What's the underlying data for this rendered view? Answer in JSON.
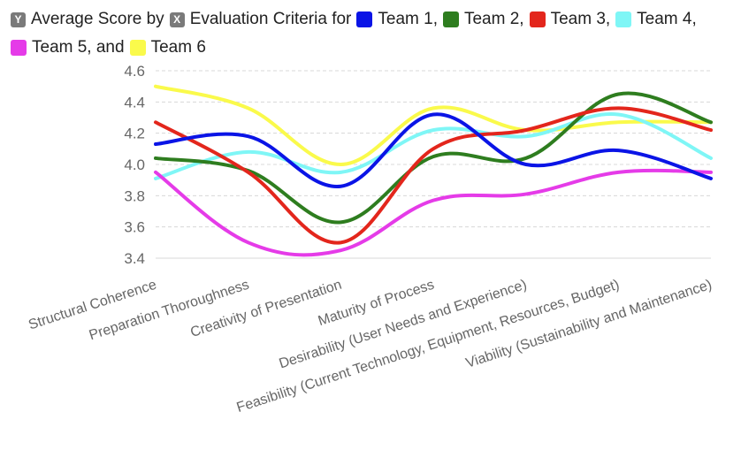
{
  "legend": {
    "y_badge": "Y",
    "x_badge": "X",
    "text_1": "Average Score by",
    "text_2": "Evaluation Criteria for",
    "entries": [
      "Team 1,",
      "Team 2,",
      "Team 3,",
      "Team 4,",
      "Team 5, and",
      "Team 6"
    ]
  },
  "colors": {
    "Team 1": "#0a14e6",
    "Team 2": "#2e7d1f",
    "Team 3": "#e3261c",
    "Team 4": "#7ff6f6",
    "Team 5": "#e53be8",
    "Team 6": "#fafa4b",
    "grid": "#d8d8d8",
    "badge": "#7a7a7a"
  },
  "chart_data": {
    "type": "line",
    "ylabel": "Average Score",
    "xlabel": "Evaluation Criteria",
    "ylim": [
      3.4,
      4.6
    ],
    "yticks": [
      "3.4",
      "3.6",
      "3.8",
      "4.0",
      "4.2",
      "4.4",
      "4.6"
    ],
    "grid": true,
    "legend_position": "top-left",
    "categories": [
      "Structural Coherence",
      "Preparation Thoroughness",
      "Creativity of Presentation",
      "Maturity of Process",
      "Desirability (User Needs and Experience)",
      "Feasibility (Current Technology, Equipment, Resources, Budget)",
      "Viability (Sustainability and Maintenance)"
    ],
    "series": [
      {
        "name": "Team 1",
        "values": [
          4.13,
          4.18,
          3.86,
          4.32,
          4.0,
          4.09,
          3.91
        ]
      },
      {
        "name": "Team 2",
        "values": [
          4.04,
          3.96,
          3.63,
          4.05,
          4.04,
          4.45,
          4.27
        ]
      },
      {
        "name": "Team 3",
        "values": [
          4.27,
          3.95,
          3.5,
          4.1,
          4.22,
          4.36,
          4.22
        ]
      },
      {
        "name": "Team 4",
        "values": [
          3.91,
          4.08,
          3.95,
          4.22,
          4.18,
          4.32,
          4.04
        ]
      },
      {
        "name": "Team 5",
        "values": [
          3.95,
          3.5,
          3.45,
          3.77,
          3.81,
          3.95,
          3.95
        ]
      },
      {
        "name": "Team 6",
        "values": [
          4.5,
          4.36,
          4.0,
          4.36,
          4.22,
          4.27,
          4.27
        ]
      }
    ]
  }
}
